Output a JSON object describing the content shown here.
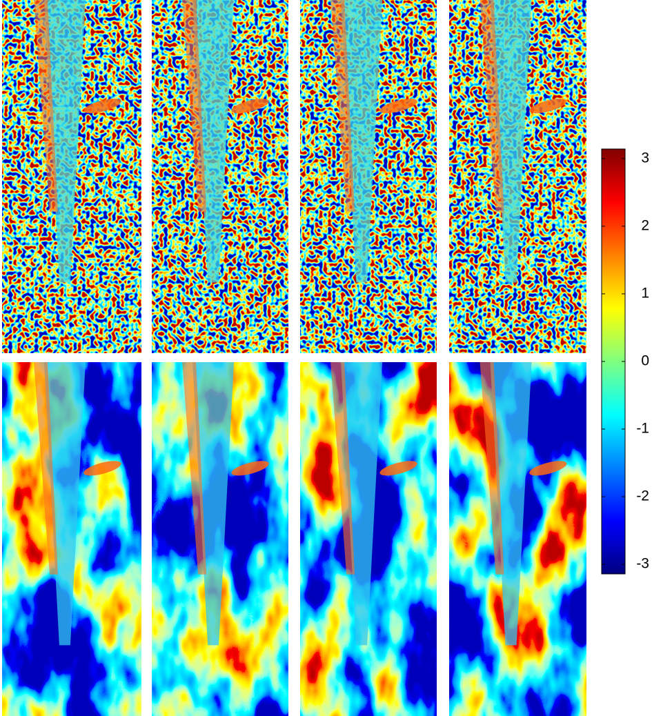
{
  "chart_data": {
    "type": "colorbar",
    "clim": [
      -3.1416,
      3.1416
    ],
    "ticks": [
      -3,
      -2,
      -1,
      0,
      1,
      2,
      3
    ]
  }
}
